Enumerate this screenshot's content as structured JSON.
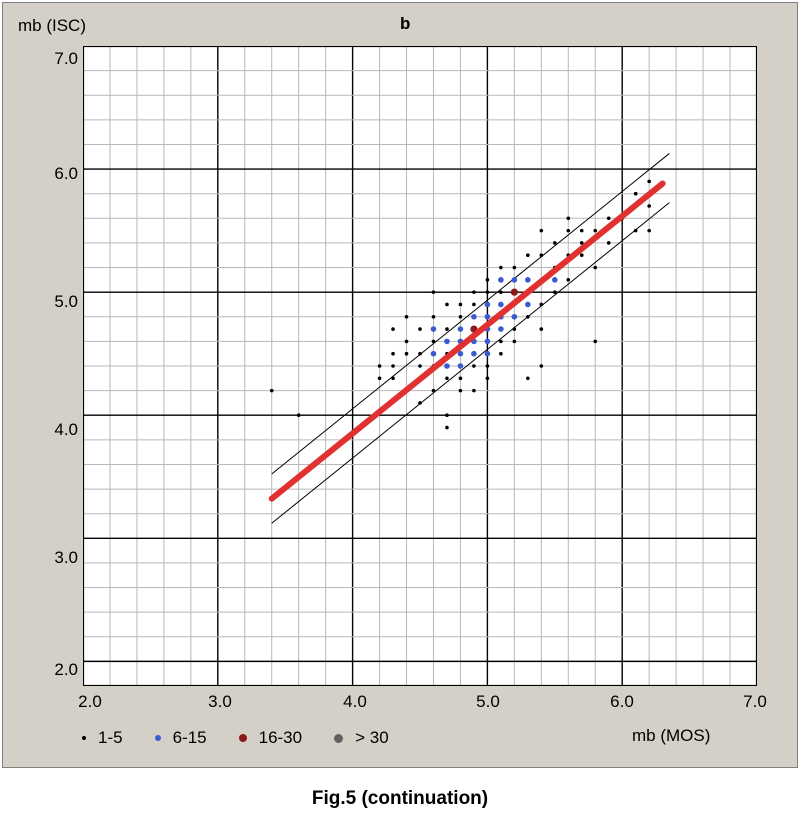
{
  "figure": {
    "panel_label": "b",
    "caption": "Fig.5 (continuation)"
  },
  "chart_data": {
    "type": "scatter",
    "title": "b",
    "xlabel": "mb (MOS)",
    "ylabel": "mb (ISC)",
    "xlim": [
      2.0,
      7.0
    ],
    "ylim": [
      1.8,
      7.0
    ],
    "xticks": [
      "2.0",
      "3.0",
      "4.0",
      "5.0",
      "6.0",
      "7.0"
    ],
    "yticks": [
      "2.0",
      "3.0",
      "4.0",
      "5.0",
      "6.0",
      "7.0"
    ],
    "grid": true,
    "minor_grid_step": 0.2,
    "major_grid_step": 1.0,
    "legend_placement": "bottom",
    "legend": [
      {
        "label": "1-5",
        "color": "#000000"
      },
      {
        "label": "6-15",
        "color": "#3a5bd0"
      },
      {
        "label": "16-30",
        "color": "#8b1a1a"
      },
      {
        "label": "> 30",
        "color": "#606060"
      }
    ],
    "regression": {
      "color": "#e03030",
      "x_range": [
        3.4,
        6.3
      ],
      "slope": 0.883,
      "intercept": 0.32,
      "band_offset": 0.2
    },
    "series": [
      {
        "name": "1-5",
        "color": "#000000",
        "points": [
          [
            3.4,
            4.2
          ],
          [
            3.6,
            4.0
          ],
          [
            4.2,
            4.3
          ],
          [
            4.2,
            4.4
          ],
          [
            4.3,
            4.3
          ],
          [
            4.3,
            4.4
          ],
          [
            4.3,
            4.5
          ],
          [
            4.3,
            4.7
          ],
          [
            4.4,
            4.8
          ],
          [
            4.4,
            4.5
          ],
          [
            4.5,
            4.5
          ],
          [
            4.5,
            4.4
          ],
          [
            4.5,
            4.1
          ],
          [
            4.6,
            5.0
          ],
          [
            4.6,
            4.6
          ],
          [
            4.6,
            4.4
          ],
          [
            4.6,
            4.2
          ],
          [
            4.7,
            4.7
          ],
          [
            4.7,
            4.5
          ],
          [
            4.7,
            4.3
          ],
          [
            4.7,
            4.0
          ],
          [
            4.7,
            3.9
          ],
          [
            4.8,
            4.9
          ],
          [
            4.8,
            4.8
          ],
          [
            4.8,
            4.3
          ],
          [
            4.8,
            4.2
          ],
          [
            4.9,
            5.0
          ],
          [
            4.9,
            4.9
          ],
          [
            4.9,
            4.8
          ],
          [
            4.9,
            4.4
          ],
          [
            4.9,
            4.2
          ],
          [
            5.0,
            5.1
          ],
          [
            5.0,
            5.0
          ],
          [
            5.0,
            4.9
          ],
          [
            5.0,
            4.5
          ],
          [
            5.0,
            4.4
          ],
          [
            5.1,
            5.2
          ],
          [
            5.1,
            5.0
          ],
          [
            5.1,
            4.9
          ],
          [
            5.1,
            4.6
          ],
          [
            5.1,
            4.5
          ],
          [
            5.2,
            5.2
          ],
          [
            5.2,
            4.9
          ],
          [
            5.2,
            4.7
          ],
          [
            5.2,
            4.6
          ],
          [
            5.3,
            5.3
          ],
          [
            5.3,
            5.0
          ],
          [
            5.3,
            4.8
          ],
          [
            5.3,
            4.3
          ],
          [
            5.4,
            5.5
          ],
          [
            5.4,
            5.3
          ],
          [
            5.4,
            5.1
          ],
          [
            5.4,
            4.9
          ],
          [
            5.4,
            4.7
          ],
          [
            5.4,
            4.4
          ],
          [
            5.5,
            5.4
          ],
          [
            5.5,
            5.0
          ],
          [
            5.6,
            5.6
          ],
          [
            5.6,
            5.5
          ],
          [
            5.6,
            5.3
          ],
          [
            5.6,
            5.1
          ],
          [
            5.7,
            5.4
          ],
          [
            5.7,
            5.3
          ],
          [
            5.8,
            5.5
          ],
          [
            5.8,
            5.2
          ],
          [
            5.8,
            4.6
          ],
          [
            5.9,
            5.4
          ],
          [
            6.0,
            5.6
          ],
          [
            6.1,
            5.8
          ],
          [
            6.2,
            5.9
          ],
          [
            6.2,
            5.7
          ],
          [
            6.2,
            5.5
          ],
          [
            6.1,
            5.5
          ],
          [
            5.9,
            5.6
          ],
          [
            4.4,
            4.6
          ],
          [
            4.5,
            4.7
          ],
          [
            4.6,
            4.8
          ],
          [
            4.7,
            4.9
          ],
          [
            4.8,
            4.4
          ],
          [
            5.0,
            4.3
          ],
          [
            5.2,
            5.1
          ],
          [
            5.3,
            5.1
          ],
          [
            5.5,
            5.2
          ],
          [
            5.7,
            5.5
          ]
        ]
      },
      {
        "name": "6-15",
        "color": "#3a5bd0",
        "points": [
          [
            4.6,
            4.7
          ],
          [
            4.6,
            4.5
          ],
          [
            4.7,
            4.6
          ],
          [
            4.7,
            4.4
          ],
          [
            4.8,
            4.7
          ],
          [
            4.8,
            4.6
          ],
          [
            4.8,
            4.5
          ],
          [
            4.8,
            4.4
          ],
          [
            4.9,
            4.8
          ],
          [
            4.9,
            4.6
          ],
          [
            4.9,
            4.5
          ],
          [
            5.0,
            4.9
          ],
          [
            5.0,
            4.8
          ],
          [
            5.0,
            4.7
          ],
          [
            5.0,
            4.6
          ],
          [
            5.0,
            4.5
          ],
          [
            5.1,
            5.1
          ],
          [
            5.1,
            4.9
          ],
          [
            5.1,
            4.8
          ],
          [
            5.1,
            4.7
          ],
          [
            5.2,
            5.1
          ],
          [
            5.2,
            5.0
          ],
          [
            5.2,
            4.8
          ],
          [
            5.3,
            5.1
          ],
          [
            5.3,
            4.9
          ],
          [
            5.5,
            5.1
          ]
        ]
      },
      {
        "name": "16-30",
        "color": "#8b1a1a",
        "points": [
          [
            4.9,
            4.7
          ],
          [
            5.2,
            5.0
          ]
        ]
      },
      {
        "name": "> 30",
        "color": "#606060",
        "points": []
      }
    ]
  }
}
